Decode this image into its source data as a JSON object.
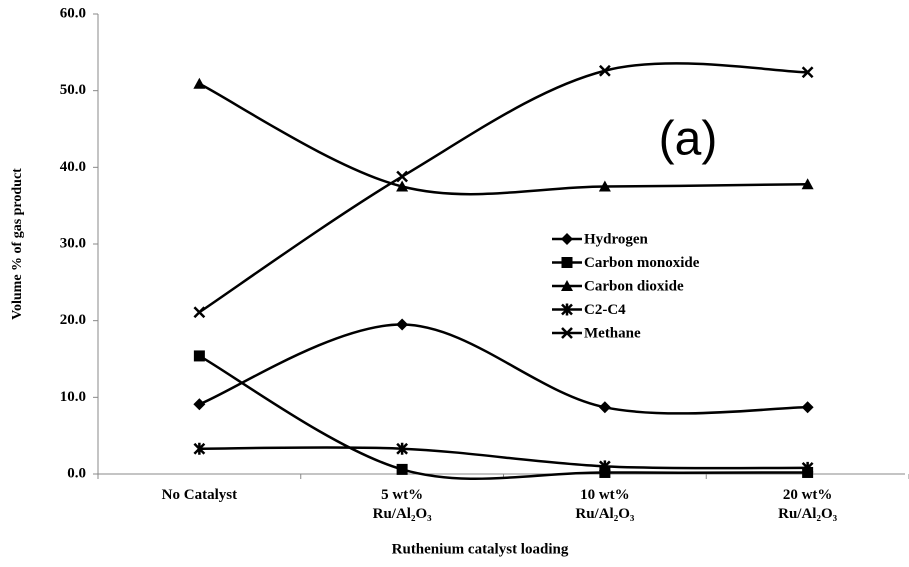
{
  "chart_data": {
    "type": "line",
    "title": "(a)",
    "x_label": "Ruthenium catalyst loading",
    "y_label": "Volume % of gas product",
    "categories": [
      "No Catalyst",
      "5 wt% Ru/Al₂O₃",
      "10 wt% Ru/Al₂O₃",
      "20 wt% Ru/Al₂O₃"
    ],
    "series": [
      {
        "name": "Hydrogen",
        "color": "#000000",
        "marker": "diamond",
        "values": [
          9.1,
          19.5,
          8.7,
          8.7
        ]
      },
      {
        "name": "Carbon monoxide",
        "color": "#000000",
        "marker": "square",
        "values": [
          15.4,
          0.6,
          0.2,
          0.2
        ]
      },
      {
        "name": "Carbon dioxide",
        "color": "#000000",
        "marker": "triangle",
        "values": [
          50.9,
          37.5,
          37.5,
          37.8
        ]
      },
      {
        "name": "C2-C4",
        "color": "#000000",
        "marker": "star",
        "values": [
          3.3,
          3.3,
          1.0,
          0.8
        ]
      },
      {
        "name": "Methane",
        "color": "#000000",
        "marker": "x",
        "values": [
          21.1,
          38.8,
          52.6,
          52.4
        ]
      }
    ],
    "smooth": true,
    "ylim": [
      0,
      60
    ],
    "yticks": [
      {
        "value": 0,
        "label": "0.0"
      },
      {
        "value": 10,
        "label": "10.0"
      },
      {
        "value": 20,
        "label": "20.0"
      },
      {
        "value": 30,
        "label": "30.0"
      },
      {
        "value": 40,
        "label": "40.0"
      },
      {
        "value": 50,
        "label": "50.0"
      },
      {
        "value": 60,
        "label": "60.0"
      }
    ]
  }
}
